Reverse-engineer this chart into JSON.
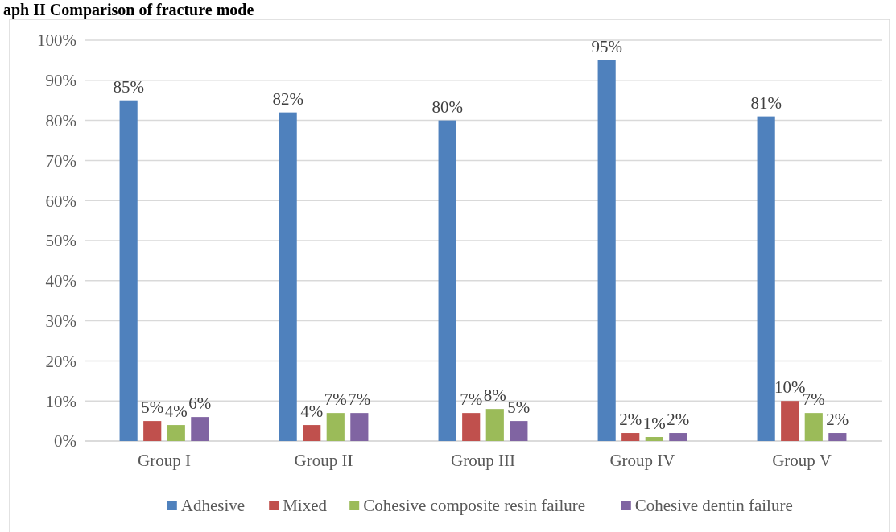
{
  "chart_data": {
    "type": "bar",
    "title": "aph II Comparison of fracture mode",
    "categories": [
      "Group I",
      "Group II",
      "Group III",
      "Group IV",
      "Group V"
    ],
    "series": [
      {
        "name": "Adhesive",
        "color": "#4f81bd",
        "values": [
          85,
          82,
          80,
          95,
          81
        ],
        "value_labels": [
          "85%",
          "82%",
          "80%",
          "95%",
          "81%"
        ]
      },
      {
        "name": "Mixed",
        "color": "#c0504d",
        "values": [
          5,
          4,
          7,
          2,
          10
        ],
        "value_labels": [
          "5%",
          "4%",
          "7%",
          "2%",
          "10%"
        ]
      },
      {
        "name": "Cohesive composite resin failure",
        "color": "#9bbb59",
        "values": [
          4,
          7,
          8,
          1,
          7
        ],
        "value_labels": [
          "4%",
          "7%",
          "8%",
          "1%",
          "7%"
        ]
      },
      {
        "name": "Cohesive dentin failure",
        "color": "#8064a2",
        "values": [
          6,
          7,
          5,
          2,
          2
        ],
        "value_labels": [
          "6%",
          "7%",
          "5%",
          "2%",
          "2%"
        ]
      }
    ],
    "ylim": [
      0,
      100
    ],
    "yticks": [
      {
        "value": 0,
        "label": "0%"
      },
      {
        "value": 10,
        "label": "10%"
      },
      {
        "value": 20,
        "label": "20%"
      },
      {
        "value": 30,
        "label": "30%"
      },
      {
        "value": 40,
        "label": "40%"
      },
      {
        "value": 50,
        "label": "50%"
      },
      {
        "value": 60,
        "label": "60%"
      },
      {
        "value": 70,
        "label": "70%"
      },
      {
        "value": 80,
        "label": "80%"
      },
      {
        "value": 90,
        "label": "90%"
      },
      {
        "value": 100,
        "label": "100%"
      }
    ],
    "grid": "y",
    "legend": "bottom"
  }
}
